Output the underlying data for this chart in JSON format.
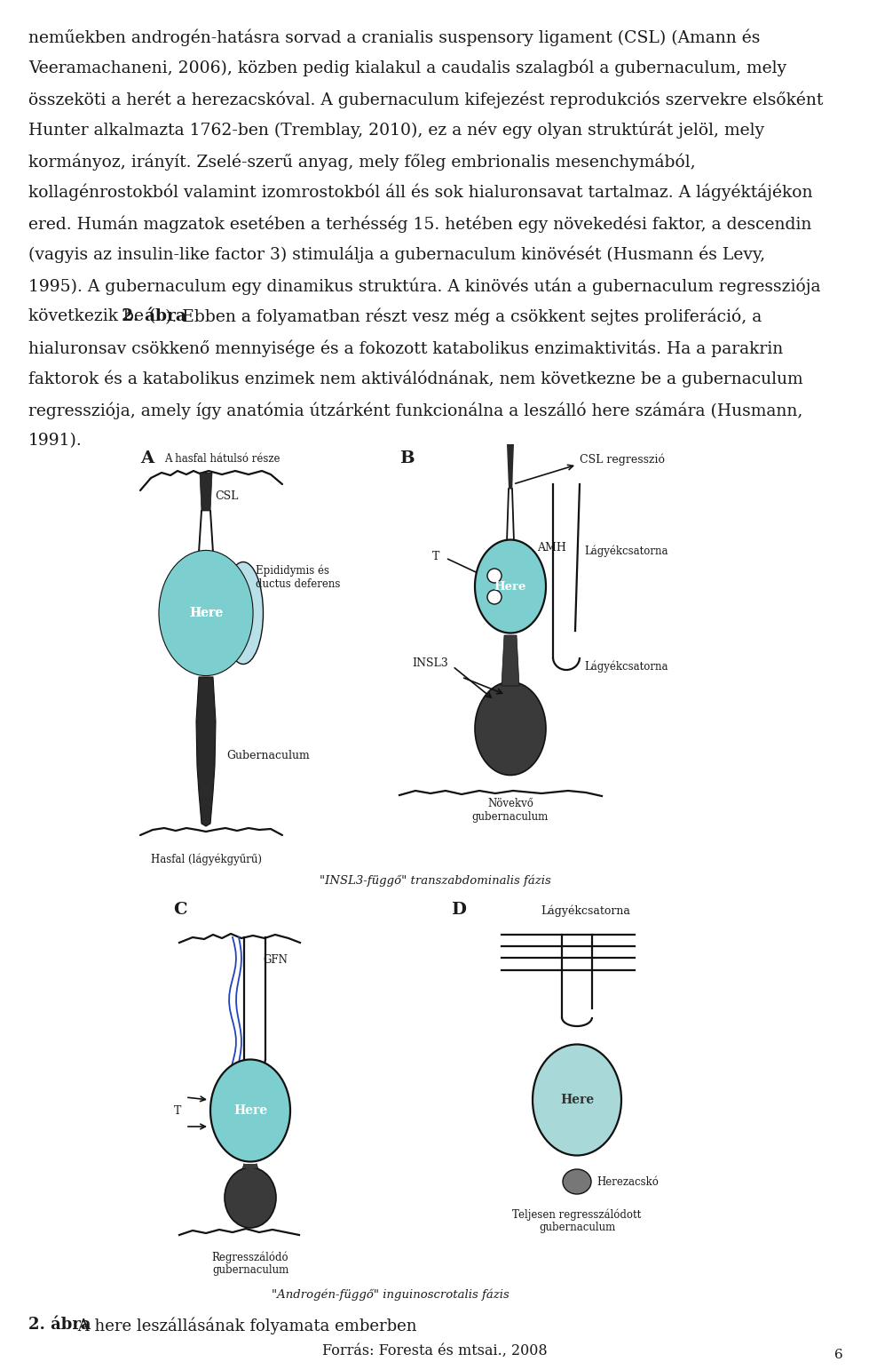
{
  "background_color": "#ffffff",
  "page_number": "6",
  "paragraphs": [
    "neműekben androgén-hatásra sorvad a cranialis suspensory ligament (CSL) (Amann és",
    "Veeramachaneni, 2006), közben pedig kialakul a caudalis szalagból a gubernaculum, mely",
    "összeköti a herét a herezacskóval. A gubernaculum kifejezést reprodukciós szervekre elsőként",
    "Hunter alkalmazta 1762-ben (Tremblay, 2010), ez a név egy olyan struktúrát jelöl, mely",
    "kormányoz, irányít. Zselé-szerű anyag, mely főleg embrionalis mesenchymából,",
    "kollagénrostokból valamint izomrostokból áll és sok hialuronsavat tartalmaz. A lágyéktájékon",
    "ered. Humán magzatok esetében a terhésség 15. hetében egy növekedési faktor, a descendin",
    "(vagyis az insulin-like factor 3) stimulálja a gubernaculum kinövését (Husmann és Levy,",
    "1995). A gubernaculum egy dinamikus struktúra. A kinövés után a gubernaculum regressziója",
    "következik be (2. ábra). Ebben a folyamatban részt vesz még a csökkent sejtes proliferáció, a",
    "hialuronsav csökkenő mennyisége és a fokozott katabolikus enzimaktivitás. Ha a parakrin",
    "faktorok és a katabolikus enzimek nem aktiválódnának, nem következne be a gubernaculum",
    "regressziója, amely így anatómia útzárként funkcionálna a leszálló here számára (Husmann,",
    "1991)."
  ],
  "line9_pre": "következik be (",
  "line9_bold": "2. ábra",
  "line9_post": "). Ebben a folyamatban részt vesz még a csökkent sejtes proliferáció, a",
  "caption_bold": "2. ábra",
  "caption_rest": " A here leszállásának folyamata emberben",
  "source_text": "Forrás: Foresta és mtsai., 2008",
  "subtitle_AB": "\"INSL3-függő\" transzabdominalis fázis",
  "subtitle_CD": "\"Androgén-függő\" inguinoscrotalis fázis",
  "label_A_hasfal": "A hasfal hátulsó része",
  "label_CSL_A": "CSL",
  "label_epididymis": "Epididymis és\nductus deferens",
  "label_here": "Here",
  "label_gubernaculum_A": "Gubernaculum",
  "label_hasfal_A": "Hasfal (lágyékgyűrű)",
  "label_CSL_B": "CSL regresszió",
  "label_AMH": "AMH",
  "label_T": "T",
  "label_INSL3": "INSL3",
  "label_novekvo": "Növekvő\ngubernaculum",
  "label_lagyekcsatorna": "Lágyékcsatorna",
  "label_GFN": "GFN",
  "label_regresszalodo": "Regresszálódó\ngubernaculum",
  "label_herezacsko": "Herezacskó",
  "label_teljesen": "Teljesen regresszálódott\ngubernaculum",
  "teal_color": "#7dcfcf",
  "dark_color": "#111111",
  "text_color": "#1a1a1a",
  "blue_nerve": "#2244bb"
}
